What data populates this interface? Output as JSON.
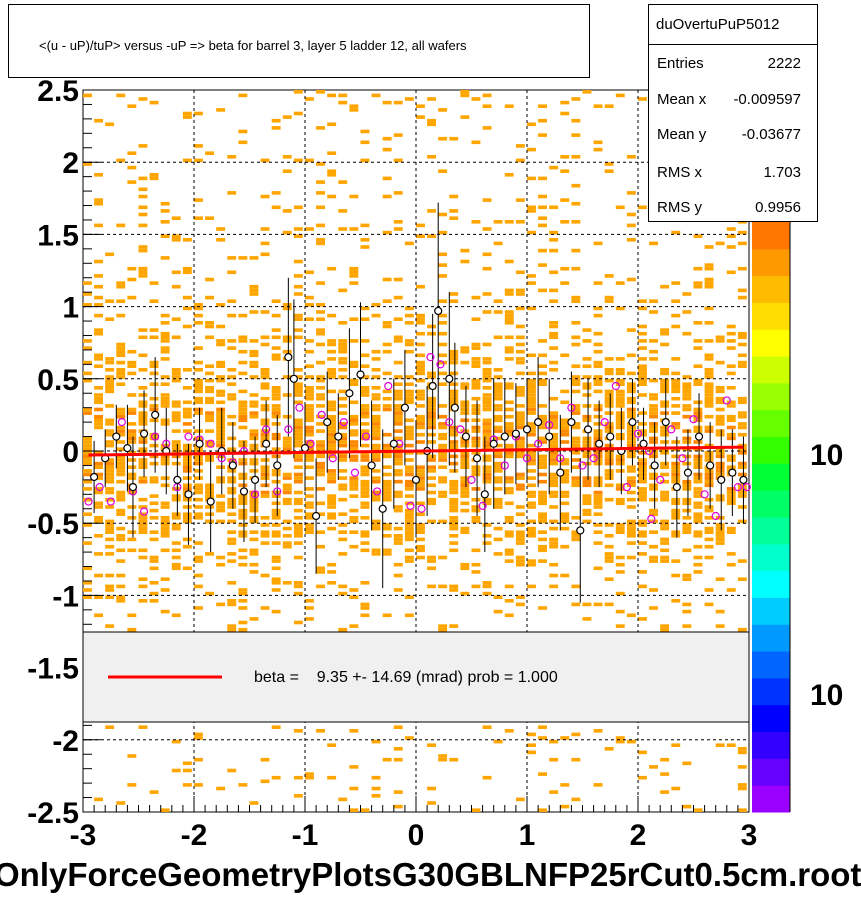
{
  "title": "<(u - uP)/tuP> versus  -uP => beta for barrel 3, layer 5 ladder 12, all wafers",
  "stats": {
    "name": "duOvertuPuP5012",
    "rows": [
      {
        "label": "Entries",
        "value": "2222"
      },
      {
        "label": "Mean x",
        "value": "-0.009597"
      },
      {
        "label": "Mean y",
        "value": "-0.03677"
      },
      {
        "label": "RMS x",
        "value": "1.703"
      },
      {
        "label": "RMS y",
        "value": "0.9956"
      }
    ]
  },
  "legend": {
    "text": "beta =    9.35 +- 14.69 (mrad) prob = 1.000"
  },
  "footer": "OnlyForceGeometryPlotsG30GBLNFP25rCut0.5cm.root",
  "palette_labels": [
    "10",
    "10"
  ],
  "colors": {
    "fill_cells": "#ffa500",
    "fit_line": "#ff0000",
    "profile_marker": "#000000",
    "alt_marker": "#dd00dd",
    "legend_bg": "#f0f0f0"
  },
  "chart_data": {
    "type": "scatter",
    "title": "<(u - uP)/tuP> versus  -uP => beta for barrel 3, layer 5 ladder 12, all wafers",
    "xlim": [
      -3,
      3
    ],
    "ylim": [
      -2.5,
      2.5
    ],
    "x_ticks": [
      "-3",
      "-2",
      "-1",
      "0",
      "1",
      "2",
      "3"
    ],
    "y_ticks": [
      "-2.5",
      "-2",
      "-1.5",
      "-1",
      "-0.5",
      "0",
      "0.5",
      "1",
      "1.5",
      "2",
      "2.5"
    ],
    "grid": true,
    "fit": {
      "x": [
        -2.95,
        2.95
      ],
      "y": [
        -0.028,
        0.027
      ]
    },
    "profile": [
      {
        "x": -2.9,
        "y": -0.18,
        "err": 0.25
      },
      {
        "x": -2.8,
        "y": -0.05,
        "err": 0.2
      },
      {
        "x": -2.7,
        "y": 0.1,
        "err": 0.22
      },
      {
        "x": -2.6,
        "y": 0.02,
        "err": 0.3
      },
      {
        "x": -2.55,
        "y": -0.25,
        "err": 0.35
      },
      {
        "x": -2.45,
        "y": 0.12,
        "err": 0.3
      },
      {
        "x": -2.35,
        "y": 0.25,
        "err": 0.4
      },
      {
        "x": -2.25,
        "y": 0.0,
        "err": 0.3
      },
      {
        "x": -2.15,
        "y": -0.2,
        "err": 0.25
      },
      {
        "x": -2.05,
        "y": -0.3,
        "err": 0.35
      },
      {
        "x": -1.95,
        "y": 0.05,
        "err": 0.25
      },
      {
        "x": -1.85,
        "y": -0.35,
        "err": 0.35
      },
      {
        "x": -1.75,
        "y": 0.0,
        "err": 0.3
      },
      {
        "x": -1.65,
        "y": -0.1,
        "err": 0.3
      },
      {
        "x": -1.55,
        "y": -0.28,
        "err": 0.35
      },
      {
        "x": -1.45,
        "y": -0.2,
        "err": 0.3
      },
      {
        "x": -1.35,
        "y": 0.05,
        "err": 0.3
      },
      {
        "x": -1.25,
        "y": -0.1,
        "err": 0.35
      },
      {
        "x": -1.15,
        "y": 0.65,
        "err": 0.55
      },
      {
        "x": -1.1,
        "y": 0.5,
        "err": 0.55
      },
      {
        "x": -1.0,
        "y": 0.02,
        "err": 0.3
      },
      {
        "x": -0.9,
        "y": -0.45,
        "err": 0.4
      },
      {
        "x": -0.8,
        "y": 0.2,
        "err": 0.35
      },
      {
        "x": -0.7,
        "y": 0.1,
        "err": 0.3
      },
      {
        "x": -0.6,
        "y": 0.4,
        "err": 0.45
      },
      {
        "x": -0.5,
        "y": 0.53,
        "err": 0.5
      },
      {
        "x": -0.4,
        "y": -0.1,
        "err": 0.45
      },
      {
        "x": -0.3,
        "y": -0.4,
        "err": 0.55
      },
      {
        "x": -0.2,
        "y": 0.05,
        "err": 0.45
      },
      {
        "x": -0.1,
        "y": 0.3,
        "err": 0.4
      },
      {
        "x": 0.0,
        "y": -0.2,
        "err": 0.4
      },
      {
        "x": 0.1,
        "y": 0.0,
        "err": 0.45
      },
      {
        "x": 0.15,
        "y": 0.45,
        "err": 0.5
      },
      {
        "x": 0.2,
        "y": 0.97,
        "err": 0.75
      },
      {
        "x": 0.3,
        "y": 0.5,
        "err": 0.6
      },
      {
        "x": 0.35,
        "y": 0.3,
        "err": 0.45
      },
      {
        "x": 0.45,
        "y": 0.1,
        "err": 0.35
      },
      {
        "x": 0.55,
        "y": -0.05,
        "err": 0.4
      },
      {
        "x": 0.62,
        "y": -0.3,
        "err": 0.4
      },
      {
        "x": 0.7,
        "y": 0.05,
        "err": 0.45
      },
      {
        "x": 0.8,
        "y": 0.1,
        "err": 0.4
      },
      {
        "x": 0.9,
        "y": 0.12,
        "err": 0.35
      },
      {
        "x": 1.0,
        "y": 0.15,
        "err": 0.35
      },
      {
        "x": 1.1,
        "y": 0.2,
        "err": 0.45
      },
      {
        "x": 1.2,
        "y": 0.1,
        "err": 0.4
      },
      {
        "x": 1.3,
        "y": -0.15,
        "err": 0.4
      },
      {
        "x": 1.4,
        "y": 0.2,
        "err": 0.35
      },
      {
        "x": 1.48,
        "y": -0.55,
        "err": 0.5
      },
      {
        "x": 1.55,
        "y": 0.15,
        "err": 0.35
      },
      {
        "x": 1.65,
        "y": 0.05,
        "err": 0.3
      },
      {
        "x": 1.75,
        "y": 0.1,
        "err": 0.3
      },
      {
        "x": 1.85,
        "y": 0.0,
        "err": 0.3
      },
      {
        "x": 1.95,
        "y": 0.2,
        "err": 0.3
      },
      {
        "x": 2.05,
        "y": 0.05,
        "err": 0.25
      },
      {
        "x": 2.15,
        "y": -0.1,
        "err": 0.3
      },
      {
        "x": 2.25,
        "y": 0.2,
        "err": 0.3
      },
      {
        "x": 2.35,
        "y": -0.25,
        "err": 0.35
      },
      {
        "x": 2.45,
        "y": -0.15,
        "err": 0.3
      },
      {
        "x": 2.55,
        "y": 0.1,
        "err": 0.3
      },
      {
        "x": 2.65,
        "y": -0.1,
        "err": 0.3
      },
      {
        "x": 2.75,
        "y": -0.2,
        "err": 0.35
      },
      {
        "x": 2.85,
        "y": -0.15,
        "err": 0.3
      },
      {
        "x": 2.95,
        "y": -0.2,
        "err": 0.3
      }
    ],
    "alt_points": [
      {
        "x": -2.95,
        "y": -0.35
      },
      {
        "x": -2.85,
        "y": -0.25
      },
      {
        "x": -2.75,
        "y": -0.35
      },
      {
        "x": -2.65,
        "y": 0.2
      },
      {
        "x": -2.55,
        "y": -0.28
      },
      {
        "x": -2.45,
        "y": -0.42
      },
      {
        "x": -2.35,
        "y": 0.1
      },
      {
        "x": -2.25,
        "y": 0.05
      },
      {
        "x": -2.15,
        "y": -0.25
      },
      {
        "x": -2.05,
        "y": 0.1
      },
      {
        "x": -1.95,
        "y": 0.08
      },
      {
        "x": -1.85,
        "y": 0.05
      },
      {
        "x": -1.75,
        "y": -0.05
      },
      {
        "x": -1.65,
        "y": -0.08
      },
      {
        "x": -1.55,
        "y": 0.0
      },
      {
        "x": -1.45,
        "y": -0.3
      },
      {
        "x": -1.35,
        "y": 0.15
      },
      {
        "x": -1.25,
        "y": -0.28
      },
      {
        "x": -1.15,
        "y": 0.15
      },
      {
        "x": -1.05,
        "y": 0.3
      },
      {
        "x": -0.95,
        "y": 0.05
      },
      {
        "x": -0.85,
        "y": 0.25
      },
      {
        "x": -0.75,
        "y": -0.05
      },
      {
        "x": -0.65,
        "y": 0.2
      },
      {
        "x": -0.55,
        "y": -0.15
      },
      {
        "x": -0.45,
        "y": 0.1
      },
      {
        "x": -0.35,
        "y": -0.28
      },
      {
        "x": -0.25,
        "y": 0.45
      },
      {
        "x": -0.15,
        "y": 0.05
      },
      {
        "x": -0.05,
        "y": -0.38
      },
      {
        "x": 0.05,
        "y": -0.4
      },
      {
        "x": 0.13,
        "y": 0.65
      },
      {
        "x": 0.22,
        "y": 0.6
      },
      {
        "x": 0.3,
        "y": 0.2
      },
      {
        "x": 0.4,
        "y": 0.15
      },
      {
        "x": 0.5,
        "y": -0.2
      },
      {
        "x": 0.6,
        "y": -0.38
      },
      {
        "x": 0.7,
        "y": 0.08
      },
      {
        "x": 0.8,
        "y": -0.1
      },
      {
        "x": 0.9,
        "y": 0.1
      },
      {
        "x": 1.0,
        "y": -0.05
      },
      {
        "x": 1.1,
        "y": 0.05
      },
      {
        "x": 1.2,
        "y": 0.18
      },
      {
        "x": 1.3,
        "y": -0.05
      },
      {
        "x": 1.4,
        "y": 0.3
      },
      {
        "x": 1.5,
        "y": -0.1
      },
      {
        "x": 1.6,
        "y": -0.05
      },
      {
        "x": 1.7,
        "y": 0.2
      },
      {
        "x": 1.8,
        "y": 0.45
      },
      {
        "x": 1.9,
        "y": -0.25
      },
      {
        "x": 2.0,
        "y": 0.12
      },
      {
        "x": 2.1,
        "y": 0.0
      },
      {
        "x": 2.2,
        "y": -0.2
      },
      {
        "x": 2.3,
        "y": 0.15
      },
      {
        "x": 2.4,
        "y": -0.05
      },
      {
        "x": 2.5,
        "y": 0.22
      },
      {
        "x": 2.6,
        "y": -0.3
      },
      {
        "x": 2.7,
        "y": -0.45
      },
      {
        "x": 2.8,
        "y": 0.35
      },
      {
        "x": 2.9,
        "y": -0.25
      },
      {
        "x": 2.98,
        "y": -0.25
      },
      {
        "x": 2.12,
        "y": -0.47
      }
    ]
  }
}
